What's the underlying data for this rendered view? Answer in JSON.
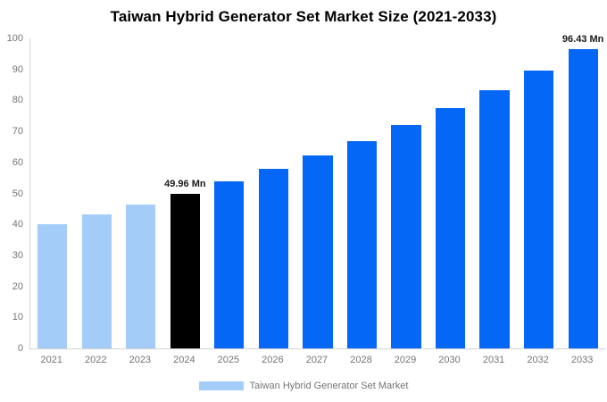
{
  "title": "Taiwan Hybrid Generator Set Market Size (2021-2033)",
  "legend": {
    "label": "Taiwan Hybrid Generator Set Market",
    "swatch_color": "#a3cdf8"
  },
  "colors": {
    "historical": "#a3cdf8",
    "current": "#000000",
    "forecast": "#0567f5",
    "axis_line": "#d3d3d3",
    "tick_text": "#757575",
    "annotation_text": "#1a1a1a"
  },
  "chart_data": {
    "type": "bar",
    "title": "Taiwan Hybrid Generator Set Market Size (2021-2033)",
    "categories": [
      "2021",
      "2022",
      "2023",
      "2024",
      "2025",
      "2026",
      "2027",
      "2028",
      "2029",
      "2030",
      "2031",
      "2032",
      "2033"
    ],
    "values": [
      40.1,
      43.1,
      46.4,
      49.96,
      53.8,
      57.8,
      62.2,
      67.0,
      72.1,
      77.5,
      83.4,
      89.7,
      96.43
    ],
    "unit": "Mn",
    "bar_roles": [
      "historical",
      "historical",
      "historical",
      "current",
      "forecast",
      "forecast",
      "forecast",
      "forecast",
      "forecast",
      "forecast",
      "forecast",
      "forecast",
      "forecast"
    ],
    "annotations": [
      {
        "index": 3,
        "text": "49.96 Mn"
      },
      {
        "index": 12,
        "text": "96.43 Mn"
      }
    ],
    "xlabel": "",
    "ylabel": "",
    "ylim": [
      0,
      100
    ],
    "yticks": [
      0,
      10,
      20,
      30,
      40,
      50,
      60,
      70,
      80,
      90,
      100
    ],
    "grid": false,
    "legend_position": "bottom",
    "legend_entries": [
      "Taiwan Hybrid Generator Set Market"
    ]
  }
}
